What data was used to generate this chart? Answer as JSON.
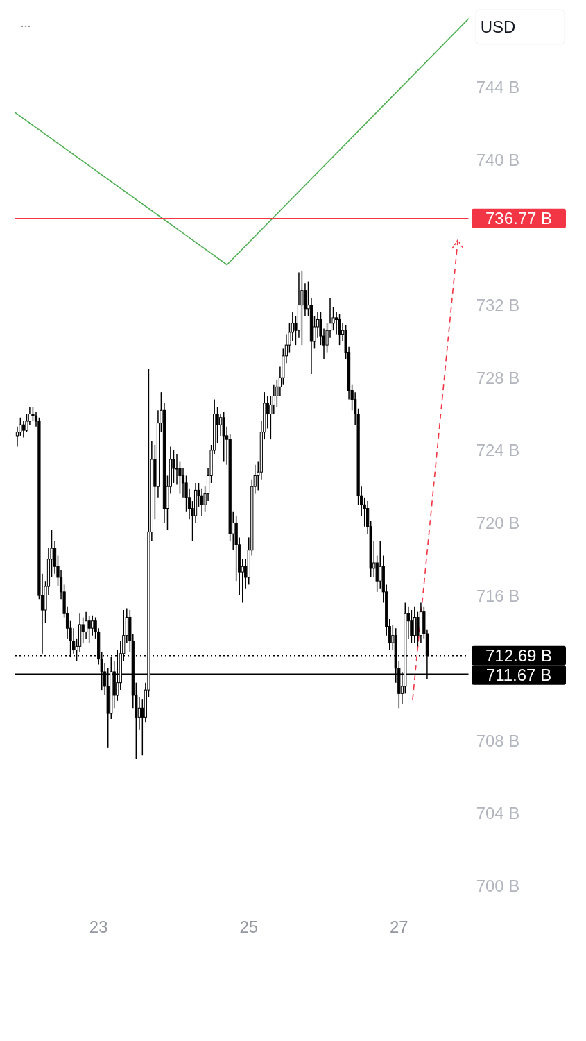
{
  "chart_data": {
    "type": "candlestick",
    "ylabel": "USD",
    "color": "#000000",
    "x": [
      21.917,
      21.958,
      22.0,
      22.042,
      22.083,
      22.125,
      22.167,
      22.208,
      22.25,
      22.292,
      22.333,
      22.375,
      22.417,
      22.458,
      22.5,
      22.542,
      22.583,
      22.625,
      22.667,
      22.708,
      22.75,
      22.792,
      22.833,
      22.875,
      22.917,
      22.958,
      23.0,
      23.042,
      23.083,
      23.125,
      23.167,
      23.208,
      23.25,
      23.292,
      23.333,
      23.375,
      23.417,
      23.458,
      23.5,
      23.542,
      23.583,
      23.625,
      23.667,
      23.708,
      23.75,
      23.792,
      23.833,
      23.875,
      23.917,
      23.958,
      24.0,
      24.042,
      24.083,
      24.125,
      24.167,
      24.208,
      24.25,
      24.292,
      24.333,
      24.375,
      24.417,
      24.458,
      24.5,
      24.542,
      24.583,
      24.625,
      24.667,
      24.708,
      24.75,
      24.792,
      24.833,
      24.875,
      24.917,
      24.958,
      25.0,
      25.042,
      25.083,
      25.125,
      25.167,
      25.208,
      25.25,
      25.292,
      25.333,
      25.375,
      25.417,
      25.458,
      25.5,
      25.542,
      25.583,
      25.625,
      25.667,
      25.708,
      25.75,
      25.792,
      25.833,
      25.875,
      25.917,
      25.958,
      26.0,
      26.042,
      26.083,
      26.125,
      26.167,
      26.208,
      26.25,
      26.292,
      26.333,
      26.375,
      26.417,
      26.458,
      26.5,
      26.542,
      26.583,
      26.625,
      26.667,
      26.708,
      26.75,
      26.792,
      26.833,
      26.875,
      26.917,
      26.958,
      27.0,
      27.042,
      27.083,
      27.125,
      27.167,
      27.208,
      27.25,
      27.292,
      27.333,
      27.375
    ],
    "ohlc": [
      [
        724.8,
        725.3,
        724.2,
        725.0
      ],
      [
        725.0,
        725.8,
        724.8,
        725.4
      ],
      [
        725.4,
        725.6,
        724.7,
        725.1
      ],
      [
        725.1,
        726.0,
        725.0,
        725.6
      ],
      [
        725.6,
        726.4,
        725.4,
        726.0
      ],
      [
        726.0,
        726.4,
        725.6,
        725.9
      ],
      [
        725.9,
        726.1,
        725.3,
        725.6
      ],
      [
        725.6,
        725.8,
        715.8,
        716.0
      ],
      [
        716.0,
        717.2,
        712.8,
        715.2
      ],
      [
        715.2,
        716.8,
        714.5,
        716.5
      ],
      [
        716.5,
        718.6,
        716.0,
        718.0
      ],
      [
        718.0,
        719.6,
        717.0,
        718.6
      ],
      [
        718.6,
        719.0,
        717.2,
        717.6
      ],
      [
        717.6,
        718.2,
        716.5,
        717.0
      ],
      [
        717.0,
        717.4,
        715.8,
        716.2
      ],
      [
        716.2,
        716.6,
        714.8,
        715.0
      ],
      [
        715.0,
        715.4,
        713.6,
        714.2
      ],
      [
        714.2,
        714.6,
        712.6,
        713.5
      ],
      [
        713.5,
        714.2,
        712.8,
        713.0
      ],
      [
        713.0,
        713.6,
        712.4,
        713.2
      ],
      [
        713.2,
        715.0,
        712.9,
        714.4
      ],
      [
        714.4,
        714.8,
        713.4,
        714.0
      ],
      [
        714.0,
        715.1,
        713.6,
        714.6
      ],
      [
        714.6,
        714.9,
        713.4,
        714.2
      ],
      [
        714.2,
        714.9,
        713.8,
        714.6
      ],
      [
        714.6,
        714.8,
        713.6,
        714.0
      ],
      [
        714.0,
        714.2,
        712.2,
        712.5
      ],
      [
        712.5,
        712.9,
        710.8,
        711.8
      ],
      [
        711.8,
        712.3,
        710.5,
        711.0
      ],
      [
        711.0,
        712.0,
        707.6,
        709.5
      ],
      [
        709.5,
        712.6,
        709.2,
        711.8
      ],
      [
        711.8,
        712.4,
        709.8,
        710.5
      ],
      [
        710.5,
        713.0,
        710.2,
        711.2
      ],
      [
        711.2,
        713.5,
        710.8,
        712.8
      ],
      [
        712.8,
        715.2,
        712.4,
        713.8
      ],
      [
        713.8,
        715.3,
        713.4,
        714.8
      ],
      [
        714.8,
        715.2,
        712.9,
        713.5
      ],
      [
        713.5,
        713.9,
        709.8,
        710.5
      ],
      [
        710.5,
        711.2,
        707.0,
        709.3
      ],
      [
        709.3,
        710.4,
        708.6,
        709.8
      ],
      [
        709.8,
        710.3,
        707.2,
        709.3
      ],
      [
        709.3,
        711.2,
        709.0,
        710.8
      ],
      [
        710.8,
        728.5,
        710.4,
        719.5
      ],
      [
        719.5,
        724.5,
        719.0,
        723.5
      ],
      [
        723.5,
        724.3,
        720.2,
        722.0
      ],
      [
        722.0,
        726.2,
        721.4,
        725.5
      ],
      [
        725.5,
        727.2,
        725.0,
        726.2
      ],
      [
        726.2,
        726.6,
        720.0,
        720.8
      ],
      [
        720.8,
        722.6,
        719.6,
        722.0
      ],
      [
        722.0,
        724.2,
        721.6,
        723.5
      ],
      [
        723.5,
        724.0,
        722.2,
        723.0
      ],
      [
        723.0,
        723.8,
        722.1,
        723.0
      ],
      [
        723.0,
        723.4,
        721.6,
        722.6
      ],
      [
        722.6,
        723.0,
        721.4,
        722.2
      ],
      [
        722.2,
        722.6,
        720.6,
        721.4
      ],
      [
        721.4,
        721.9,
        720.2,
        720.8
      ],
      [
        720.8,
        721.2,
        719.0,
        720.4
      ],
      [
        720.4,
        722.2,
        720.0,
        721.8
      ],
      [
        721.8,
        722.2,
        720.9,
        721.5
      ],
      [
        721.5,
        721.9,
        720.4,
        721.0
      ],
      [
        721.0,
        722.0,
        720.6,
        721.6
      ],
      [
        721.6,
        723.0,
        721.2,
        722.6
      ],
      [
        722.6,
        724.3,
        722.2,
        724.0
      ],
      [
        724.0,
        726.8,
        723.8,
        726.0
      ],
      [
        726.0,
        726.4,
        724.4,
        725.4
      ],
      [
        725.4,
        726.0,
        724.8,
        725.8
      ],
      [
        725.8,
        726.1,
        723.4,
        724.8
      ],
      [
        724.8,
        725.3,
        723.2,
        724.6
      ],
      [
        724.6,
        724.9,
        719.0,
        719.4
      ],
      [
        719.4,
        720.6,
        718.5,
        720.0
      ],
      [
        720.0,
        720.4,
        716.8,
        718.8
      ],
      [
        718.8,
        719.2,
        716.0,
        717.3
      ],
      [
        717.3,
        718.0,
        715.6,
        717.6
      ],
      [
        717.6,
        718.0,
        716.4,
        717.0
      ],
      [
        717.0,
        719.2,
        716.6,
        718.5
      ],
      [
        718.5,
        722.4,
        718.2,
        722.0
      ],
      [
        722.0,
        723.2,
        721.6,
        722.6
      ],
      [
        722.6,
        723.4,
        721.8,
        722.8
      ],
      [
        722.8,
        725.6,
        722.4,
        725.0
      ],
      [
        725.0,
        727.2,
        724.6,
        726.6
      ],
      [
        726.6,
        727.0,
        725.2,
        726.0
      ],
      [
        726.0,
        727.0,
        724.6,
        726.5
      ],
      [
        726.5,
        727.6,
        726.0,
        727.0
      ],
      [
        727.0,
        727.9,
        726.4,
        727.5
      ],
      [
        727.5,
        728.6,
        727.0,
        728.0
      ],
      [
        728.0,
        729.6,
        727.6,
        729.2
      ],
      [
        729.2,
        730.4,
        728.8,
        729.8
      ],
      [
        729.8,
        731.0,
        729.4,
        730.5
      ],
      [
        730.5,
        731.6,
        730.0,
        731.0
      ],
      [
        731.0,
        731.4,
        729.8,
        730.6
      ],
      [
        730.6,
        733.8,
        730.2,
        732.0
      ],
      [
        732.0,
        733.9,
        729.8,
        732.8
      ],
      [
        732.8,
        733.2,
        731.4,
        731.8
      ],
      [
        731.8,
        733.3,
        731.4,
        732.0
      ],
      [
        732.0,
        732.4,
        728.2,
        730.0
      ],
      [
        730.0,
        731.4,
        729.6,
        730.8
      ],
      [
        730.8,
        731.6,
        730.2,
        731.2
      ],
      [
        731.2,
        731.6,
        729.8,
        730.3
      ],
      [
        730.3,
        730.7,
        729.0,
        729.8
      ],
      [
        729.8,
        731.0,
        729.4,
        730.6
      ],
      [
        730.6,
        732.4,
        730.2,
        731.0
      ],
      [
        731.0,
        731.9,
        730.6,
        731.3
      ],
      [
        731.3,
        731.6,
        730.4,
        731.2
      ],
      [
        731.2,
        731.5,
        729.8,
        730.4
      ],
      [
        730.4,
        731.0,
        730.0,
        730.6
      ],
      [
        730.6,
        730.9,
        729.0,
        729.4
      ],
      [
        729.4,
        729.7,
        726.8,
        727.3
      ],
      [
        727.3,
        727.6,
        726.2,
        726.8
      ],
      [
        726.8,
        727.2,
        725.4,
        726.0
      ],
      [
        726.0,
        726.3,
        721.0,
        721.5
      ],
      [
        721.5,
        722.0,
        720.4,
        721.0
      ],
      [
        721.0,
        721.4,
        719.8,
        720.8
      ],
      [
        720.8,
        721.2,
        719.4,
        719.8
      ],
      [
        719.8,
        720.1,
        717.0,
        717.5
      ],
      [
        717.5,
        719.0,
        717.0,
        717.8
      ],
      [
        717.8,
        718.2,
        716.2,
        716.8
      ],
      [
        716.8,
        719.0,
        716.4,
        717.6
      ],
      [
        717.6,
        718.2,
        715.6,
        716.2
      ],
      [
        716.2,
        716.6,
        713.8,
        714.3
      ],
      [
        714.3,
        714.7,
        713.0,
        713.4
      ],
      [
        713.4,
        714.4,
        713.0,
        713.8
      ],
      [
        713.8,
        714.2,
        711.2,
        712.0
      ],
      [
        712.0,
        712.4,
        709.8,
        710.6
      ],
      [
        710.6,
        711.8,
        710.0,
        711.0
      ],
      [
        711.0,
        715.6,
        710.6,
        715.0
      ],
      [
        715.0,
        715.4,
        713.6,
        714.6
      ],
      [
        714.6,
        715.2,
        713.4,
        713.8
      ],
      [
        713.8,
        715.4,
        713.4,
        714.8
      ],
      [
        714.8,
        715.1,
        713.2,
        713.8
      ],
      [
        713.8,
        715.6,
        713.4,
        715.1
      ],
      [
        715.1,
        715.4,
        713.6,
        713.9
      ],
      [
        713.9,
        714.1,
        711.4,
        712.69
      ]
    ],
    "series": [
      {
        "type": "line",
        "color": "#4caf50",
        "x": [
          21.89,
          24.71,
          27.93
        ],
        "values": [
          742.6,
          734.22,
          747.79
        ]
      }
    ],
    "ref_lines": [
      {
        "axis": "y",
        "value": 736.77,
        "label": "736.77 B",
        "color": "#f23645"
      },
      {
        "axis": "y",
        "value": 712.69,
        "label": "712.69 B",
        "color": "#000000",
        "line_style": "dotted"
      },
      {
        "axis": "y",
        "value": 711.67,
        "label": "711.67 B",
        "color": "#000000"
      }
    ],
    "xlim": [
      21.89,
      27.93
    ],
    "xticks": [
      23,
      25,
      27
    ],
    "ylim": [
      698.8,
      748.5
    ],
    "yticks": [
      {
        "value": 700,
        "label": "700 B"
      },
      {
        "value": 704,
        "label": "704 B"
      },
      {
        "value": 708,
        "label": "708 B"
      },
      {
        "value": 716,
        "label": "716 B"
      },
      {
        "value": 720,
        "label": "720 B"
      },
      {
        "value": 724,
        "label": "724 B"
      },
      {
        "value": 728,
        "label": "728 B"
      },
      {
        "value": 732,
        "label": "732 B"
      },
      {
        "value": 740,
        "label": "740 B"
      },
      {
        "value": 744,
        "label": "744 B"
      }
    ],
    "grid": false
  }
}
